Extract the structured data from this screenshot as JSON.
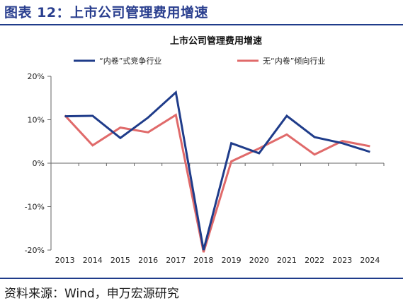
{
  "figure": {
    "title": "图表 12：上市公司管理费用增速",
    "source": "资料来源：Wind，申万宏源研究"
  },
  "chart_data": {
    "type": "line",
    "title": "上市公司管理费用增速",
    "xlabel": "",
    "ylabel": "",
    "categories": [
      "2013",
      "2014",
      "2015",
      "2016",
      "2017",
      "2018",
      "2019",
      "2020",
      "2021",
      "2022",
      "2023",
      "2024"
    ],
    "ylim": [
      -0.2,
      0.2
    ],
    "yticks": [
      -0.2,
      -0.1,
      0,
      0.1,
      0.2
    ],
    "ytick_labels": [
      "-20%",
      "-10%",
      "0%",
      "10%",
      "20%"
    ],
    "grid": false,
    "legend_position": "top",
    "series": [
      {
        "name": "“内卷”式竞争行业",
        "color": "#1f3c8a",
        "values": [
          0.108,
          0.109,
          0.058,
          0.105,
          0.163,
          -0.2,
          0.046,
          0.023,
          0.109,
          0.06,
          0.046,
          0.026
        ]
      },
      {
        "name": "无“内卷”倾向行业",
        "color": "#e06a6a",
        "values": [
          0.11,
          0.041,
          0.082,
          0.071,
          0.111,
          -0.205,
          0.004,
          0.034,
          0.066,
          0.02,
          0.051,
          0.039
        ]
      }
    ]
  }
}
